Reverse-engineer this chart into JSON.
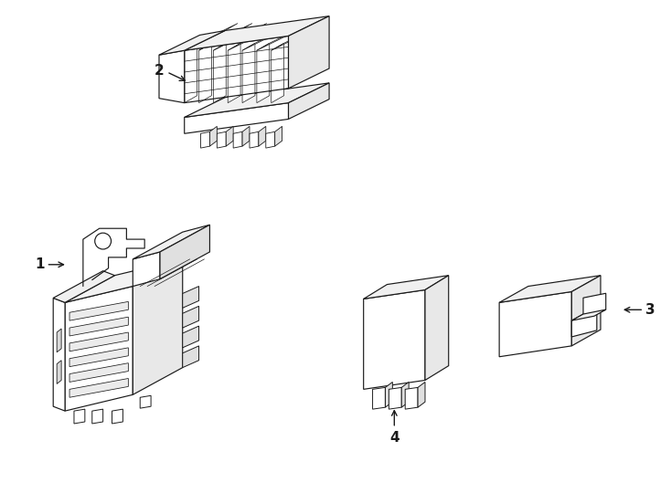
{
  "background_color": "#ffffff",
  "line_color": "#1a1a1a",
  "lw": 0.85,
  "fig_width": 7.34,
  "fig_height": 5.4,
  "dpi": 100
}
